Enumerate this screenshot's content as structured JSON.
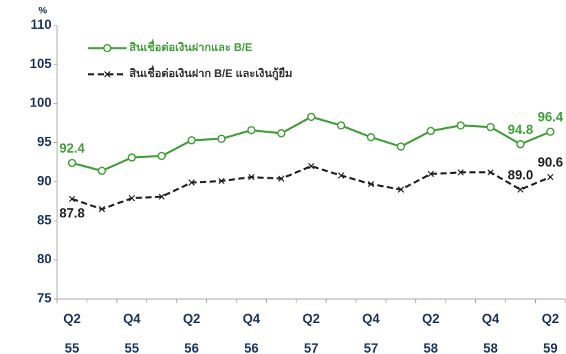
{
  "chart_data": {
    "type": "line",
    "y_unit": "%",
    "categories": [
      [
        "Q2",
        "55"
      ],
      null,
      [
        "Q4",
        "55"
      ],
      null,
      [
        "Q2",
        "56"
      ],
      null,
      [
        "Q4",
        "56"
      ],
      null,
      [
        "Q2",
        "57"
      ],
      null,
      [
        "Q4",
        "57"
      ],
      null,
      [
        "Q2",
        "58"
      ],
      null,
      [
        "Q4",
        "58"
      ],
      null,
      [
        "Q2",
        "59"
      ]
    ],
    "series": [
      {
        "name": "สินเชื่อต่อเงินฝากและ B/E",
        "color": "#43a03a",
        "marker": "circle",
        "values": [
          92.4,
          91.4,
          93.1,
          93.3,
          95.3,
          95.5,
          96.6,
          96.2,
          98.3,
          97.2,
          95.7,
          94.5,
          96.5,
          97.2,
          97.0,
          94.8,
          96.4
        ],
        "value_labels": [
          "92.4",
          null,
          null,
          null,
          null,
          null,
          null,
          null,
          null,
          null,
          null,
          null,
          null,
          null,
          null,
          "94.8",
          "96.4"
        ]
      },
      {
        "name": "สินเชื่อต่อเงินฝาก B/E และเงินกู้ยืม",
        "color": "#222222",
        "marker": "x",
        "dash": true,
        "values": [
          87.8,
          86.5,
          87.9,
          88.1,
          89.9,
          90.1,
          90.6,
          90.4,
          92.0,
          90.8,
          89.7,
          89.0,
          91.0,
          91.2,
          91.2,
          89.0,
          90.6
        ],
        "value_labels": [
          "87.8",
          null,
          null,
          null,
          null,
          null,
          null,
          null,
          null,
          null,
          null,
          null,
          null,
          null,
          null,
          "89.0",
          "90.6"
        ]
      }
    ],
    "ylim": [
      75,
      110
    ],
    "yticks": [
      75,
      80,
      85,
      90,
      95,
      100,
      105,
      110
    ],
    "legend": "upper left"
  }
}
